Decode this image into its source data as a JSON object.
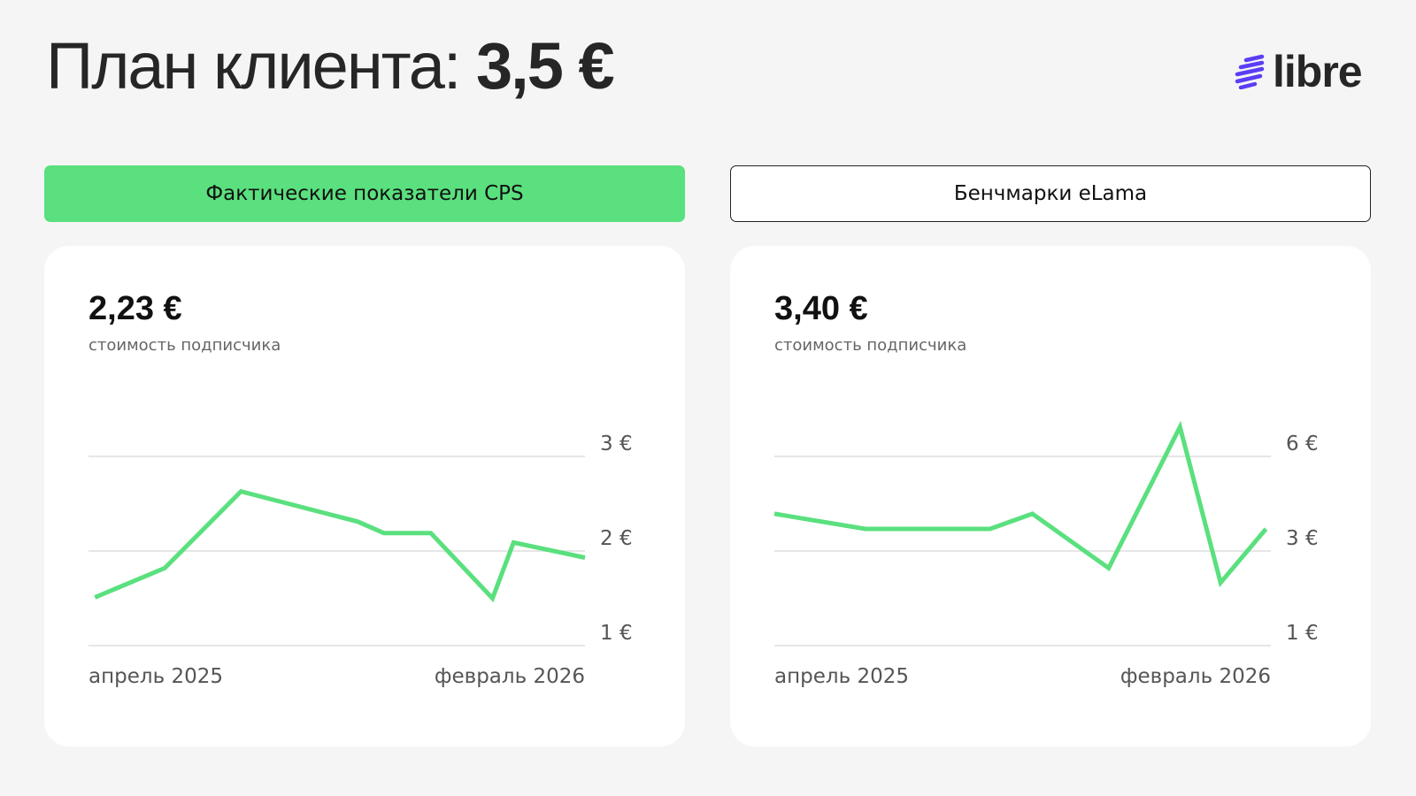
{
  "header": {
    "title_prefix": "План клиента:",
    "title_value": "3,5 €"
  },
  "logo": {
    "text": "libre",
    "icon": "stripes-logo-icon",
    "icon_color": "#5b3df5"
  },
  "tabs": [
    {
      "label": "Фактические показатели CPS",
      "active": true,
      "color": "#5ae07e"
    },
    {
      "label": "Бенчмарки eLama",
      "active": false
    }
  ],
  "cards": [
    {
      "value": "2,23 €",
      "caption": "стоимость подписчика"
    },
    {
      "value": "3,40 €",
      "caption": "стоимость подписчика"
    }
  ],
  "chart_data": [
    {
      "type": "line",
      "line_color": "#5ae07e",
      "x_range": [
        "2025-04-01",
        "2026-02-01"
      ],
      "x_tick_labels": [
        "апрель 2025",
        "февраль 2026"
      ],
      "y_ticks": [
        1,
        2,
        3
      ],
      "y_tick_labels": [
        "1 €",
        "2 €",
        "3 €"
      ],
      "grid": true,
      "series": [
        {
          "x": [
            "2025-04-05",
            "2025-05-18",
            "2025-07-04",
            "2025-09-14",
            "2025-09-30",
            "2025-10-29",
            "2025-12-06",
            "2025-12-19",
            "2026-02-01"
          ],
          "y": [
            1.51,
            1.82,
            2.63,
            2.31,
            2.19,
            2.19,
            1.5,
            2.09,
            1.93
          ]
        }
      ]
    },
    {
      "type": "line",
      "line_color": "#5ae07e",
      "x_range": [
        "2025-04-01",
        "2026-02-01"
      ],
      "x_tick_labels": [
        "апрель 2025",
        "февраль 2026"
      ],
      "y_ticks": [
        1,
        3,
        6
      ],
      "y_tick_labels": [
        "1 €",
        "3 €",
        "6 €"
      ],
      "grid": true,
      "series": [
        {
          "x": [
            "2025-04-01",
            "2025-05-27",
            "2025-08-12",
            "2025-09-07",
            "2025-10-24",
            "2025-12-07",
            "2026-01-01",
            "2026-01-29"
          ],
          "y": [
            4.18,
            3.7,
            3.7,
            4.18,
            2.64,
            6.93,
            2.33,
            3.7
          ]
        }
      ]
    }
  ]
}
